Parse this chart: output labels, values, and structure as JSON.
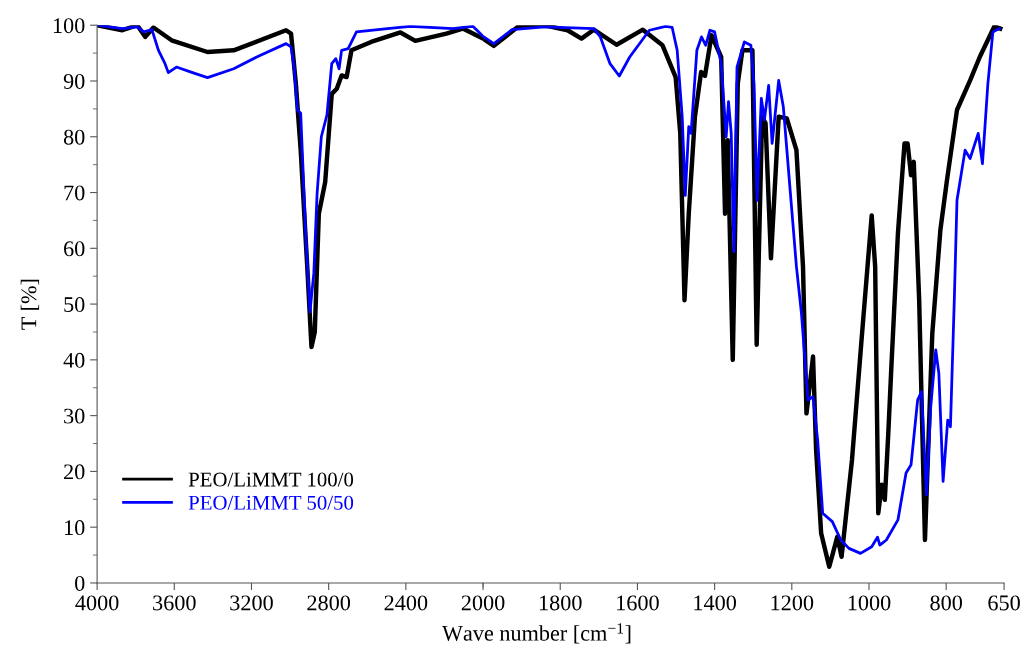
{
  "chart_data": [
    {
      "type": "line",
      "xlabel": "Wave number [cm$^{−1}$]",
      "ylabel": "T [%]",
      "xlim": [
        4000,
        2000
      ],
      "xticks": [
        4000,
        3600,
        3200,
        2800,
        2400,
        2000
      ],
      "ylim": [
        0,
        100
      ],
      "yticks": [
        0,
        {
          "value": 5,
          "label": null
        },
        10,
        {
          "value": 15,
          "label": null
        },
        20,
        {
          "value": 25,
          "label": null
        },
        30,
        {
          "value": 35,
          "label": null
        },
        40,
        {
          "value": 45,
          "label": null
        },
        50,
        {
          "value": 55,
          "label": null
        },
        60,
        {
          "value": 65,
          "label": null
        },
        70,
        {
          "value": 75,
          "label": null
        },
        80,
        {
          "value": 85,
          "label": null
        },
        90,
        {
          "value": 95,
          "label": null
        },
        100
      ],
      "legend": "bottom left",
      "marker": "none",
      "line_style": "solid",
      "series": [
        {
          "name": "PEO/LiMMT 100/0",
          "color": "#000000",
          "x": [
            4000,
            3869,
            3792,
            3750,
            3708,
            3614,
            3428,
            3292,
            3021,
            2995,
            2970,
            2945,
            2911,
            2889,
            2872,
            2851,
            2818,
            2784,
            2758,
            2733,
            2707,
            2682,
            2580,
            2428,
            2351,
            2190,
            2105,
            2000
          ],
          "values": [
            100,
            99.1,
            100,
            97.9,
            99.6,
            97.3,
            95.2,
            95.5,
            99.1,
            98.5,
            89.5,
            77.6,
            56.7,
            42.3,
            45.0,
            66.2,
            71.9,
            87.7,
            88.6,
            91.0,
            90.7,
            95.5,
            97.0,
            98.7,
            97.2,
            98.5,
            99.4,
            97.6
          ]
        },
        {
          "name": "PEO/LiMMT 50/50",
          "color": "#0000ff",
          "x": [
            4000,
            3869,
            3792,
            3758,
            3716,
            3682,
            3648,
            3631,
            3589,
            3513,
            3428,
            3292,
            3173,
            3021,
            2995,
            2979,
            2962,
            2945,
            2919,
            2897,
            2877,
            2860,
            2838,
            2809,
            2784,
            2763,
            2746,
            2733,
            2699,
            2656,
            2495,
            2377,
            2156,
            2053,
            2000
          ],
          "values": [
            100,
            99.4,
            99.7,
            98.8,
            99.2,
            95.5,
            93.1,
            91.5,
            92.5,
            91.6,
            90.6,
            92.2,
            94.3,
            96.7,
            96.1,
            92.5,
            84.8,
            84.2,
            62.7,
            48.6,
            55.5,
            69.8,
            80.0,
            83.9,
            93.1,
            94.0,
            92.2,
            95.5,
            95.8,
            98.8,
            99.4,
            99.8,
            99.4,
            99.8,
            98.0
          ]
        }
      ]
    },
    {
      "type": "line",
      "tick_labels": "x",
      "xlim": [
        2000,
        650
      ],
      "xticks": [
        {
          "value": 2000,
          "label": null
        },
        1800,
        1600,
        1400,
        1200,
        1000,
        800,
        650
      ],
      "ylim": [
        0,
        100
      ],
      "marker": "none",
      "line_style": "solid",
      "series": [
        {
          "color": "#000000",
          "x": [
            2000,
            1972,
            1908,
            1840,
            1781,
            1745,
            1713,
            1654,
            1586,
            1535,
            1501,
            1489,
            1478,
            1467,
            1451,
            1435,
            1425,
            1408,
            1383,
            1373,
            1366,
            1353,
            1340,
            1328,
            1302,
            1291,
            1277,
            1268,
            1254,
            1234,
            1213,
            1188,
            1171,
            1162,
            1145,
            1137,
            1124,
            1103,
            1082,
            1071,
            1044,
            1018,
            993,
            984,
            976,
            967,
            959,
            950,
            942,
            925,
            908,
            900,
            891,
            884,
            870,
            855,
            836,
            815,
            798,
            772,
            738,
            713,
            675,
            660
          ],
          "values": [
            97.6,
            96.3,
            99.8,
            100,
            99.1,
            97.6,
            99.2,
            96.5,
            99.2,
            96.4,
            90.7,
            80.6,
            50.7,
            66.2,
            83.6,
            91.6,
            90.9,
            98.2,
            94.3,
            66.2,
            79.4,
            40.0,
            89.5,
            95.5,
            95.5,
            42.7,
            83.6,
            82.4,
            58.2,
            83.6,
            83.3,
            77.6,
            56.7,
            30.4,
            40.6,
            23.8,
            8.9,
            2.9,
            8.3,
            4.7,
            22.1,
            44.7,
            65.9,
            56.7,
            12.5,
            17.6,
            14.9,
            26.8,
            38.8,
            62.7,
            78.8,
            78.8,
            73.1,
            75.5,
            50.7,
            7.7,
            44.7,
            63.3,
            72.2,
            84.8,
            90.1,
            94.3,
            99.8,
            99.4
          ]
        },
        {
          "color": "#0000ff",
          "x": [
            2000,
            1972,
            1925,
            1840,
            1713,
            1696,
            1671,
            1647,
            1620,
            1569,
            1527,
            1510,
            1497,
            1484,
            1476,
            1467,
            1461,
            1446,
            1434,
            1423,
            1412,
            1400,
            1383,
            1370,
            1364,
            1357,
            1350,
            1342,
            1323,
            1306,
            1298,
            1290,
            1279,
            1271,
            1260,
            1251,
            1234,
            1222,
            1205,
            1188,
            1175,
            1158,
            1145,
            1133,
            1120,
            1095,
            1073,
            1052,
            1022,
            993,
            978,
            972,
            955,
            925,
            904,
            891,
            874,
            864,
            851,
            840,
            827,
            819,
            808,
            796,
            789,
            779,
            772,
            751,
            738,
            717,
            706,
            692,
            679,
            671,
            662
          ],
          "values": [
            98.0,
            96.7,
            99.2,
            99.7,
            99.4,
            97.9,
            93.1,
            90.9,
            94.3,
            99.1,
            99.8,
            99.6,
            95.5,
            83.6,
            69.5,
            81.8,
            80.6,
            95.5,
            97.9,
            96.4,
            99.1,
            98.8,
            93.1,
            80.0,
            86.3,
            80.6,
            59.4,
            92.5,
            97.0,
            96.4,
            89.5,
            68.6,
            86.9,
            83.0,
            89.2,
            78.8,
            90.1,
            85.4,
            71.0,
            56.7,
            48.3,
            32.8,
            33.4,
            25.6,
            12.5,
            11.0,
            7.7,
            6.2,
            5.3,
            6.5,
            8.2,
            6.8,
            7.7,
            11.3,
            19.7,
            21.2,
            32.8,
            34.3,
            15.8,
            31.6,
            41.8,
            37.6,
            18.2,
            29.2,
            28.0,
            50.7,
            68.6,
            77.6,
            76.1,
            80.6,
            75.2,
            89.5,
            98.8,
            99.1,
            99.4
          ]
        }
      ]
    }
  ]
}
